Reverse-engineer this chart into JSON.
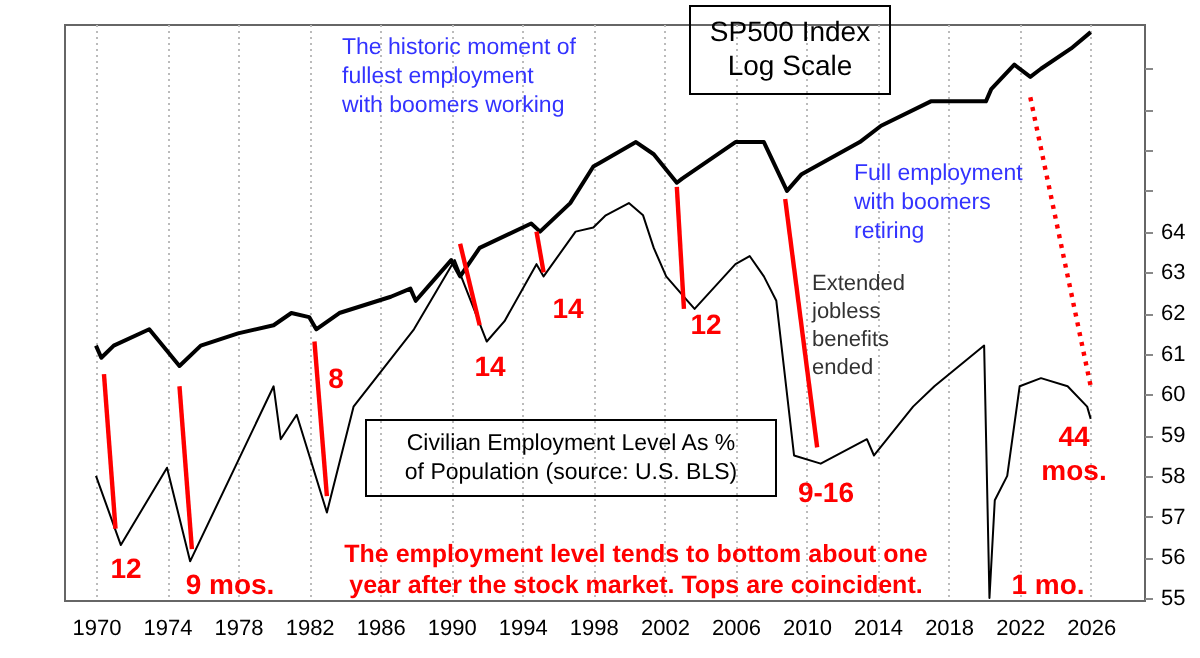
{
  "chart_data": {
    "type": "line",
    "xlim": [
      1968.2,
      2029.0
    ],
    "xticks": [
      1970,
      1974,
      1978,
      1982,
      1986,
      1990,
      1994,
      1998,
      2002,
      2006,
      2010,
      2014,
      2018,
      2022,
      2026
    ],
    "ylim": [
      54.95,
      69.1
    ],
    "yticks": [
      55,
      56,
      57,
      58,
      59,
      60,
      61,
      62,
      63,
      64,
      {
        "value": 65,
        "label": null
      },
      {
        "value": 66,
        "label": null
      },
      {
        "value": 67,
        "label": null
      },
      {
        "value": 68,
        "label": null
      }
    ],
    "grid": "x",
    "legend": false,
    "line_style": "solid",
    "marker": "none",
    "series": [
      {
        "name": "SP500 Index\nLog Scale",
        "color": "#000000",
        "x": [
          1970,
          1970.3,
          1971,
          1973,
          1974.7,
          1975.9,
          1978,
          1980,
          1981,
          1982,
          1982.4,
          1983.7,
          1986.6,
          1987.7,
          1988,
          1990,
          1990.5,
          1991.6,
          1994.5,
          1995,
          1996.7,
          1998,
          1998.4,
          2000.4,
          2001.4,
          2002.7,
          2003,
          2006,
          2007.6,
          2008.9,
          2009.7,
          2013,
          2014.2,
          2017,
          2020.1,
          2020.4,
          2021.7,
          2022.6,
          2023.2,
          2024.9,
          2026
        ],
        "values": [
          61.2,
          60.9,
          61.2,
          61.6,
          60.7,
          61.2,
          61.5,
          61.7,
          62.0,
          61.9,
          61.6,
          62.0,
          62.4,
          62.6,
          62.3,
          63.3,
          62.9,
          63.6,
          64.2,
          64.0,
          64.7,
          65.6,
          65.7,
          66.2,
          65.9,
          65.2,
          65.3,
          66.2,
          66.2,
          65.0,
          65.4,
          66.2,
          66.6,
          67.2,
          67.2,
          67.5,
          68.1,
          67.8,
          68.0,
          68.5,
          68.9
        ]
      },
      {
        "name": "Civilian Employment Level As %\nof Population (source: U.S. BLS)",
        "color": "#000000",
        "x": [
          1970,
          1971.4,
          1974,
          1975.3,
          1980,
          1980.4,
          1981.3,
          1983,
          1984.5,
          1987.9,
          1990.2,
          1992,
          1993,
          1994.8,
          1995.2,
          1997,
          1998,
          1998.7,
          2000,
          2000.8,
          2001.4,
          2002.1,
          2003.3,
          2003.7,
          2006,
          2006.8,
          2007.6,
          2008.3,
          2009.3,
          2010.8,
          2013.4,
          2013.8,
          2016,
          2017.2,
          2020.0,
          2020.3,
          2020.6,
          2021.3,
          2022,
          2023.2,
          2024.7,
          2025.8,
          2026
        ],
        "values": [
          58.0,
          56.3,
          58.2,
          55.9,
          60.2,
          58.9,
          59.5,
          57.1,
          59.7,
          61.6,
          63.3,
          61.3,
          61.8,
          63.2,
          62.9,
          64.0,
          64.1,
          64.4,
          64.7,
          64.4,
          63.6,
          62.9,
          62.3,
          62.1,
          63.2,
          63.4,
          62.9,
          62.3,
          58.5,
          58.3,
          58.9,
          58.5,
          59.7,
          60.2,
          61.2,
          55.0,
          57.4,
          58.0,
          60.2,
          60.4,
          60.2,
          59.7,
          59.4
        ]
      },
      {
        "type": "line",
        "color": "#ff0000",
        "x": [
          1970.45,
          1971.1
        ],
        "values": [
          60.5,
          56.7
        ]
      },
      {
        "type": "line",
        "color": "#ff0000",
        "x": [
          1974.7,
          1975.4
        ],
        "values": [
          60.2,
          56.2
        ]
      },
      {
        "type": "line",
        "color": "#ff0000",
        "x": [
          1982.3,
          1983.0
        ],
        "values": [
          61.3,
          57.5
        ]
      },
      {
        "type": "line",
        "color": "#ff0000",
        "x": [
          1990.5,
          1991.6
        ],
        "values": [
          63.7,
          61.7
        ]
      },
      {
        "type": "line",
        "color": "#ff0000",
        "x": [
          1994.8,
          1995.2
        ],
        "values": [
          64.0,
          63.0
        ]
      },
      {
        "type": "line",
        "color": "#ff0000",
        "x": [
          2002.7,
          2003.1
        ],
        "values": [
          65.1,
          62.1
        ]
      },
      {
        "type": "line",
        "color": "#ff0000",
        "x": [
          2008.8,
          2010.6
        ],
        "values": [
          64.8,
          58.7
        ]
      },
      {
        "type": "line",
        "color": "#ff0000",
        "line_style": "dotted",
        "x": [
          2022.6,
          2026.0
        ],
        "values": [
          67.3,
          60.2
        ]
      }
    ],
    "annotations": [
      "The historic moment of\nfullest employment\nwith boomers working",
      "Full employment\nwith boomers\nretiring",
      "Extended\njobless\nbenefits\nended",
      "12",
      "9 mos.",
      "8",
      "14",
      "14",
      "12",
      "9-16",
      "44\nmos.",
      "1 mo.",
      "The employment level tends to bottom about one\nyear after the stock market. Tops are coincident."
    ]
  }
}
